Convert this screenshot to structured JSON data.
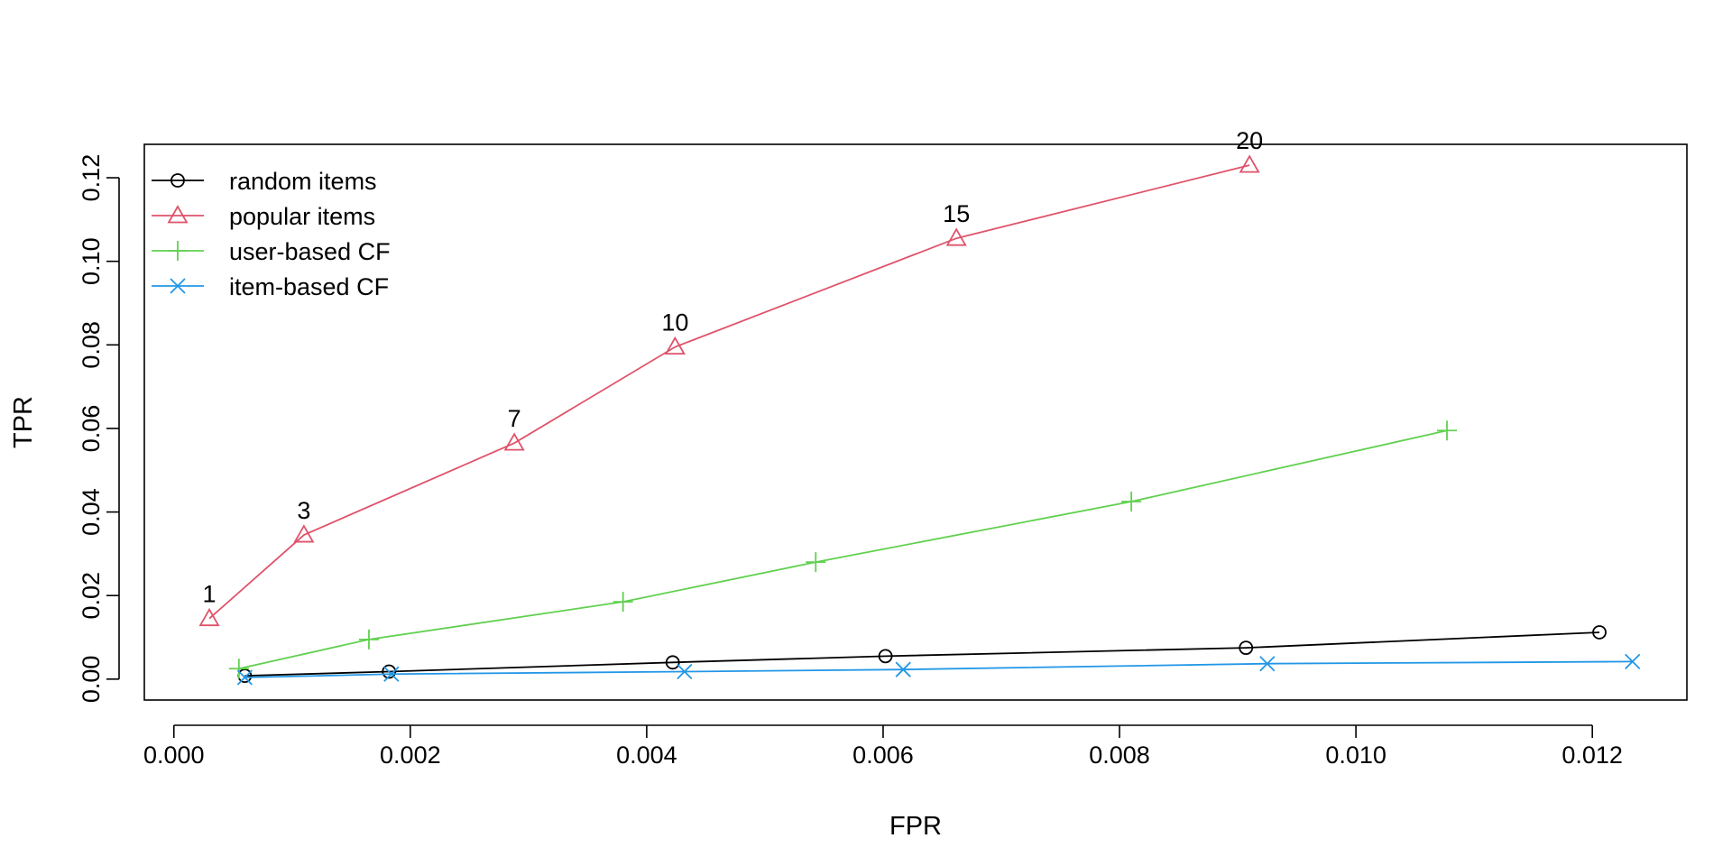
{
  "chart_data": {
    "type": "line",
    "title": "",
    "xlabel": "FPR",
    "ylabel": "TPR",
    "xlim": [
      -0.00025,
      0.0128
    ],
    "ylim": [
      -0.005,
      0.128
    ],
    "x_ticks": [
      0.0,
      0.002,
      0.004,
      0.006,
      0.008,
      0.01,
      0.012
    ],
    "x_tick_labels": [
      "0.000",
      "0.002",
      "0.004",
      "0.006",
      "0.008",
      "0.010",
      "0.012"
    ],
    "y_ticks": [
      0.0,
      0.02,
      0.04,
      0.06,
      0.08,
      0.1,
      0.12
    ],
    "y_tick_labels": [
      "0.00",
      "0.02",
      "0.04",
      "0.06",
      "0.08",
      "0.10",
      "0.12"
    ],
    "grid": false,
    "legend_position": "top-left",
    "series": [
      {
        "name": "random items",
        "color": "#000000",
        "marker": "circle",
        "x": [
          0.0006,
          0.00182,
          0.00422,
          0.00602,
          0.00907,
          0.01206
        ],
        "y": [
          0.0008,
          0.0018,
          0.004,
          0.0055,
          0.0075,
          0.0112
        ]
      },
      {
        "name": "popular items",
        "color": "#DF536B",
        "marker": "triangle",
        "x": [
          0.0003,
          0.0011,
          0.00288,
          0.00424,
          0.00662,
          0.0091
        ],
        "y": [
          0.0145,
          0.0345,
          0.0565,
          0.0795,
          0.1055,
          0.123
        ],
        "point_labels": [
          "1",
          "3",
          "7",
          "10",
          "15",
          "20"
        ]
      },
      {
        "name": "user-based CF",
        "color": "#61D04F",
        "marker": "plus",
        "x": [
          0.00055,
          0.00165,
          0.0038,
          0.00543,
          0.0081,
          0.01077
        ],
        "y": [
          0.0025,
          0.0095,
          0.0185,
          0.028,
          0.0425,
          0.0595
        ]
      },
      {
        "name": "item-based CF",
        "color": "#2297E6",
        "marker": "cross",
        "x": [
          0.0006,
          0.00184,
          0.00432,
          0.00617,
          0.00925,
          0.01234
        ],
        "y": [
          0.0004,
          0.0012,
          0.0018,
          0.0023,
          0.0037,
          0.0042
        ]
      }
    ]
  }
}
